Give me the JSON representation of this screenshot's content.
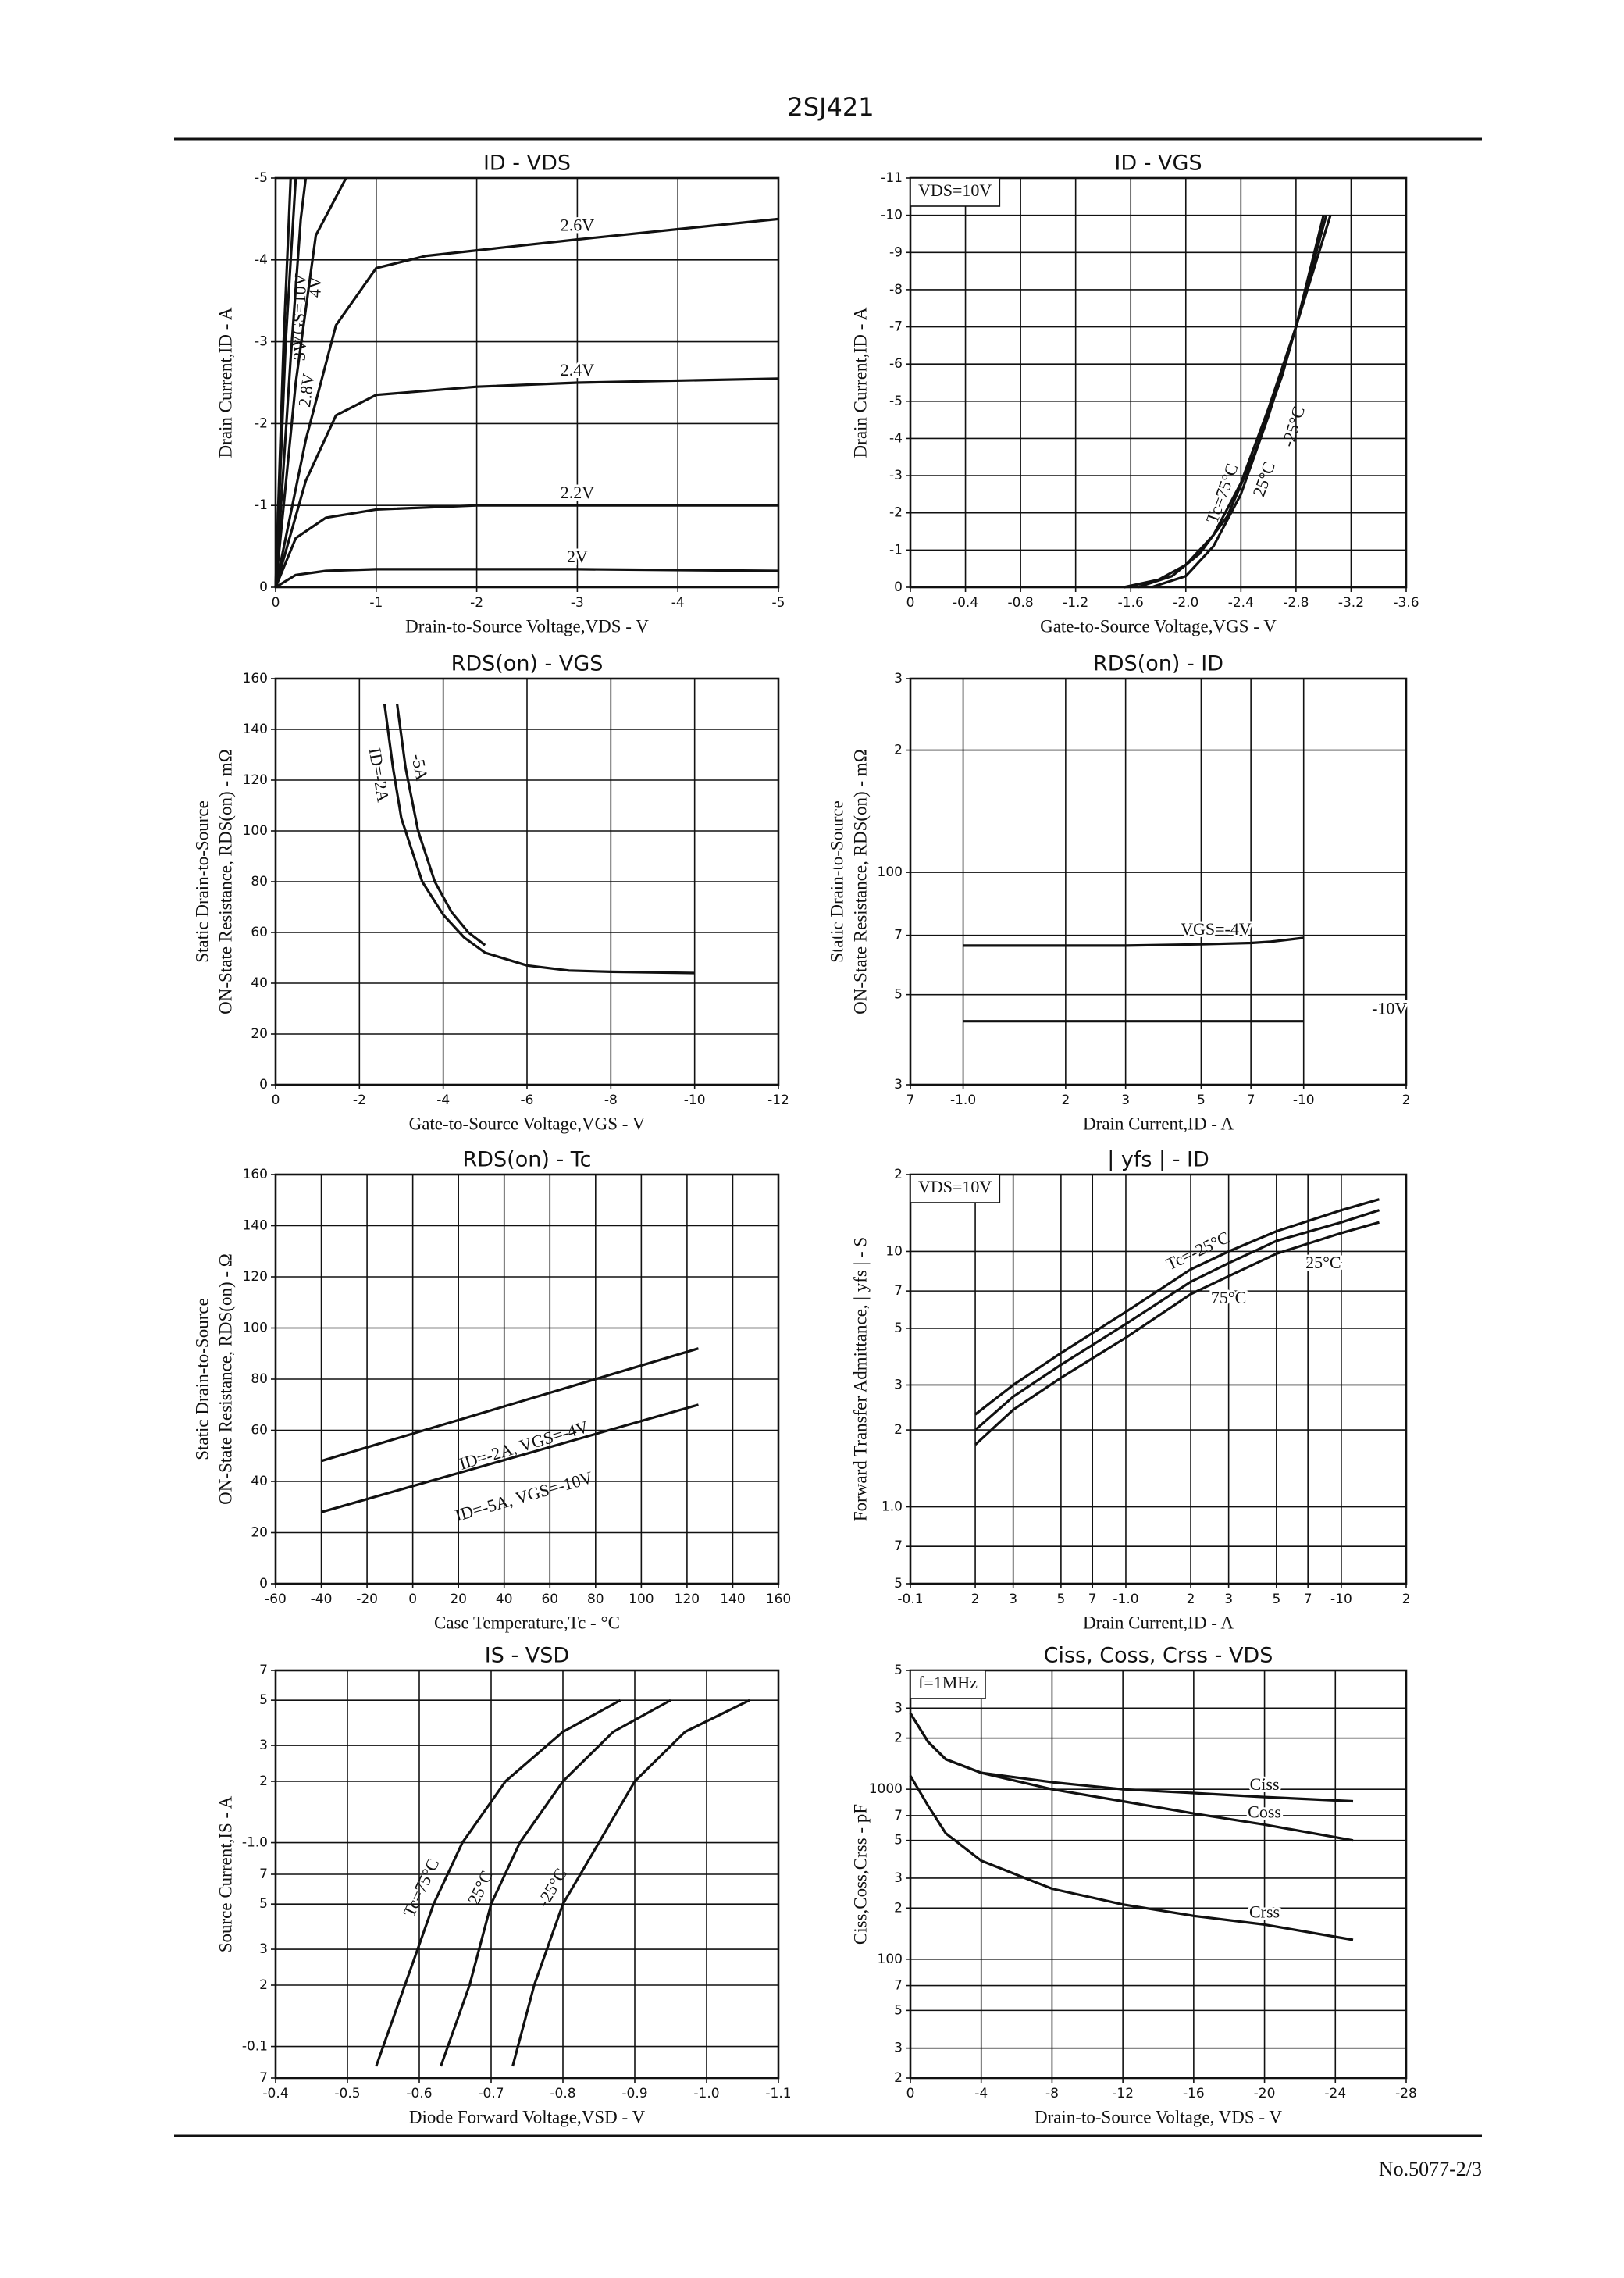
{
  "header": {
    "part": "2SJ421"
  },
  "footer": {
    "page": "No.5077-2/3"
  },
  "chart_data": [
    {
      "type": "line",
      "title": "ID - VDS",
      "xlabel": "Drain-to-Source Voltage,VDS - V",
      "ylabel": [
        "Drain Current,ID - A"
      ],
      "xlim": [
        0,
        -5
      ],
      "ylim": [
        0,
        -5
      ],
      "xticks": [
        0,
        -1,
        -2,
        -3,
        -4,
        -5
      ],
      "yticks": [
        0,
        -1,
        -2,
        -3,
        -4,
        -5
      ],
      "xlog": false,
      "ylog": false,
      "grid": true,
      "series": [
        {
          "name": "2V",
          "color": "#111",
          "x": [
            0,
            -0.2,
            -0.5,
            -1,
            -2,
            -3,
            -5
          ],
          "values": [
            0,
            -0.15,
            -0.2,
            -0.22,
            -0.22,
            -0.22,
            -0.2
          ]
        },
        {
          "name": "2.2V",
          "color": "#111",
          "x": [
            0,
            -0.2,
            -0.5,
            -1,
            -2,
            -3,
            -5
          ],
          "values": [
            0,
            -0.6,
            -0.85,
            -0.95,
            -1,
            -1,
            -1
          ]
        },
        {
          "name": "2.4V",
          "color": "#111",
          "x": [
            0,
            -0.3,
            -0.6,
            -1,
            -2,
            -3,
            -5
          ],
          "values": [
            0,
            -1.3,
            -2.1,
            -2.35,
            -2.45,
            -2.5,
            -2.55
          ]
        },
        {
          "name": "2.6V",
          "color": "#111",
          "x": [
            0,
            -0.3,
            -0.6,
            -1,
            -1.5,
            -3,
            -5
          ],
          "values": [
            0,
            -1.8,
            -3.2,
            -3.9,
            -4.05,
            -4.25,
            -4.5
          ]
        },
        {
          "name": "2.8V",
          "color": "#111",
          "x": [
            0,
            -0.2,
            -0.4,
            -0.7
          ],
          "values": [
            0,
            -2.5,
            -4.3,
            -5
          ]
        },
        {
          "name": "3V",
          "color": "#111",
          "x": [
            0,
            -0.15,
            -0.25,
            -0.3
          ],
          "values": [
            0,
            -2.8,
            -4.5,
            -5
          ]
        },
        {
          "name": "VGS=10V",
          "color": "#111",
          "x": [
            0,
            -0.08,
            -0.15
          ],
          "values": [
            0,
            -3,
            -5
          ]
        },
        {
          "name": "4V",
          "color": "#111",
          "x": [
            0,
            -0.1,
            -0.2
          ],
          "values": [
            0,
            -3,
            -5
          ]
        }
      ]
    },
    {
      "type": "line",
      "title": "ID - VGS",
      "xlabel": "Gate-to-Source Voltage,VGS - V",
      "ylabel": [
        "Drain Current,ID - A"
      ],
      "xlim": [
        0,
        -3.6
      ],
      "ylim": [
        0,
        -11
      ],
      "xticks": [
        0,
        -0.4,
        -0.8,
        -1.2,
        -1.6,
        {
          "value": -2,
          "label": "-2.0"
        },
        -2.4,
        -2.8,
        -3.2,
        -3.6
      ],
      "yticks": [
        0,
        -1,
        -2,
        -3,
        -4,
        -5,
        -6,
        -7,
        -8,
        -9,
        -10,
        -11
      ],
      "xlog": false,
      "ylog": false,
      "grid": true,
      "annotation": "VDS=10V",
      "series": [
        {
          "name": "Tc=75°C",
          "color": "#111",
          "x": [
            -1.55,
            -1.8,
            -2.0,
            -2.2,
            -2.4,
            -2.6,
            -2.8,
            -3.0
          ],
          "values": [
            0,
            -0.2,
            -0.6,
            -1.4,
            -2.8,
            -4.8,
            -7,
            -10
          ]
        },
        {
          "name": "25°C",
          "color": "#111",
          "x": [
            -1.65,
            -1.9,
            -2.1,
            -2.3,
            -2.5,
            -2.7,
            -2.8,
            -3.02
          ],
          "values": [
            0,
            -0.3,
            -0.9,
            -1.9,
            -3.6,
            -5.7,
            -7,
            -10
          ]
        },
        {
          "name": "-25°C",
          "color": "#111",
          "x": [
            -1.75,
            -2.0,
            -2.2,
            -2.4,
            -2.6,
            -2.8,
            -3.05
          ],
          "values": [
            0,
            -0.3,
            -1.1,
            -2.5,
            -4.6,
            -7,
            -10
          ]
        }
      ]
    },
    {
      "type": "line",
      "title": "RDS(on) - VGS",
      "xlabel": "Gate-to-Source Voltage,VGS - V",
      "ylabel": [
        "Static Drain-to-Source",
        "ON-State Resistance, RDS(on) - mΩ"
      ],
      "xlim": [
        0,
        -12
      ],
      "ylim": [
        0,
        160
      ],
      "xticks": [
        0,
        -2,
        -4,
        -6,
        -8,
        -10,
        -12
      ],
      "yticks": [
        0,
        20,
        40,
        60,
        80,
        100,
        120,
        140,
        160
      ],
      "xlog": false,
      "ylog": false,
      "grid": true,
      "series": [
        {
          "name": "ID=-2A",
          "color": "#111",
          "x": [
            -2.6,
            -2.8,
            -3,
            -3.5,
            -4,
            -4.5,
            -5,
            -6,
            -7,
            -8,
            -10
          ],
          "values": [
            150,
            125,
            105,
            80,
            67,
            58,
            52,
            47,
            45,
            44.5,
            44
          ]
        },
        {
          "name": "-5A",
          "color": "#111",
          "x": [
            -2.9,
            -3.1,
            -3.4,
            -3.8,
            -4.2,
            -4.6,
            -5
          ],
          "values": [
            150,
            125,
            100,
            80,
            68,
            60,
            55
          ]
        }
      ]
    },
    {
      "type": "line",
      "title": "RDS(on) - ID",
      "xlabel": "Drain Current,ID - A",
      "ylabel": [
        "Static Drain-to-Source",
        "ON-State Resistance, RDS(on) - mΩ"
      ],
      "xlim": [
        -0.7,
        -20
      ],
      "ylim": [
        30,
        300
      ],
      "xticks": [
        {
          "value": -0.7,
          "label": "7"
        },
        {
          "value": -1,
          "label": "-1.0"
        },
        {
          "value": -2,
          "label": "2"
        },
        {
          "value": -3,
          "label": "3"
        },
        {
          "value": -5,
          "label": "5"
        },
        {
          "value": -7,
          "label": "7"
        },
        -10,
        {
          "value": -20,
          "label": "2"
        }
      ],
      "yticks": [
        {
          "value": 30,
          "label": "3"
        },
        {
          "value": 50,
          "label": "5"
        },
        {
          "value": 70,
          "label": "7"
        },
        100,
        {
          "value": 200,
          "label": "2"
        },
        {
          "value": 300,
          "label": "3"
        }
      ],
      "xlog": true,
      "ylog": true,
      "grid": true,
      "series": [
        {
          "name": "VGS=-4V",
          "color": "#111",
          "x": [
            -1,
            -3,
            -5,
            -7,
            -8,
            -10
          ],
          "values": [
            66,
            66,
            66.5,
            67,
            67.5,
            69
          ]
        },
        {
          "name": "-10V",
          "color": "#111",
          "x": [
            -1,
            -10
          ],
          "values": [
            43,
            43
          ]
        }
      ]
    },
    {
      "type": "line",
      "title": "RDS(on) - Tc",
      "xlabel": "Case Temperature,Tc - °C",
      "ylabel": [
        "Static Drain-to-Source",
        "ON-State Resistance, RDS(on) - Ω"
      ],
      "xlim": [
        -60,
        160
      ],
      "ylim": [
        0,
        160
      ],
      "xticks": [
        -60,
        -40,
        -20,
        0,
        20,
        40,
        60,
        80,
        100,
        120,
        140,
        160
      ],
      "yticks": [
        0,
        20,
        40,
        60,
        80,
        100,
        120,
        140,
        160
      ],
      "xlog": false,
      "ylog": false,
      "grid": true,
      "series": [
        {
          "name": "ID=-2A, VGS=-4V",
          "color": "#111",
          "x": [
            -40,
            125
          ],
          "values": [
            48,
            92
          ]
        },
        {
          "name": "ID=-5A, VGS=-10V",
          "color": "#111",
          "x": [
            -40,
            125
          ],
          "values": [
            28,
            70
          ]
        }
      ]
    },
    {
      "type": "line",
      "title": "| yfs | - ID",
      "xlabel": "Drain Current,ID - A",
      "ylabel": [
        "Forward Transfer Admittance, | yfs | - S"
      ],
      "xlim": [
        -0.1,
        -20
      ],
      "ylim": [
        0.5,
        20
      ],
      "xticks": [
        -0.1,
        {
          "value": -0.2,
          "label": "2"
        },
        {
          "value": -0.3,
          "label": "3"
        },
        {
          "value": -0.5,
          "label": "5"
        },
        {
          "value": -0.7,
          "label": "7"
        },
        {
          "value": -1,
          "label": "-1.0"
        },
        {
          "value": -2,
          "label": "2"
        },
        {
          "value": -3,
          "label": "3"
        },
        {
          "value": -5,
          "label": "5"
        },
        {
          "value": -7,
          "label": "7"
        },
        -10,
        {
          "value": -20,
          "label": "2"
        }
      ],
      "yticks": [
        {
          "value": 0.5,
          "label": "5"
        },
        {
          "value": 0.7,
          "label": "7"
        },
        {
          "value": 1,
          "label": "1.0"
        },
        2,
        3,
        5,
        7,
        10,
        {
          "value": 20,
          "label": "2"
        }
      ],
      "xlog": true,
      "ylog": true,
      "grid": true,
      "annotation": "VDS=10V",
      "series": [
        {
          "name": "Tc=-25°C",
          "color": "#111",
          "x": [
            -0.2,
            -0.3,
            -0.5,
            -1,
            -2,
            -3,
            -5,
            -10,
            -15
          ],
          "values": [
            2.3,
            3,
            4,
            5.8,
            8.5,
            10,
            12,
            14.5,
            16
          ]
        },
        {
          "name": "25°C",
          "color": "#111",
          "x": [
            -0.2,
            -0.3,
            -0.5,
            -1,
            -2,
            -3,
            -5,
            -10,
            -15
          ],
          "values": [
            2,
            2.7,
            3.6,
            5.2,
            7.6,
            9,
            11,
            13,
            14.5
          ]
        },
        {
          "name": "75°C",
          "color": "#111",
          "x": [
            -0.2,
            -0.3,
            -0.5,
            -1,
            -2,
            -3,
            -5,
            -10,
            -15
          ],
          "values": [
            1.75,
            2.4,
            3.2,
            4.6,
            6.8,
            8,
            9.8,
            11.8,
            13
          ]
        }
      ]
    },
    {
      "type": "line",
      "title": "IS - VSD",
      "xlabel": "Diode Forward Voltage,VSD - V",
      "ylabel": [
        "Source Current,IS - A"
      ],
      "xlim": [
        -0.4,
        -1.1
      ],
      "ylim": [
        -0.07,
        -7
      ],
      "xticks": [
        -0.4,
        -0.5,
        -0.6,
        -0.7,
        -0.8,
        -0.9,
        {
          "value": -1,
          "label": "-1.0"
        },
        -1.1
      ],
      "yticks": [
        {
          "value": -0.07,
          "label": "7"
        },
        -0.1,
        {
          "value": -0.2,
          "label": "2"
        },
        {
          "value": -0.3,
          "label": "3"
        },
        {
          "value": -0.5,
          "label": "5"
        },
        {
          "value": -0.7,
          "label": "7"
        },
        {
          "value": -1,
          "label": "-1.0"
        },
        {
          "value": -2,
          "label": "2"
        },
        {
          "value": -3,
          "label": "3"
        },
        {
          "value": -5,
          "label": "5"
        },
        {
          "value": -7,
          "label": "7"
        }
      ],
      "xlog": false,
      "ylog": true,
      "grid": true,
      "series": [
        {
          "name": "Tc=75°C",
          "color": "#111",
          "x": [
            -0.54,
            -0.58,
            -0.62,
            -0.66,
            -0.72,
            -0.8,
            -0.88
          ],
          "values": [
            -0.08,
            -0.2,
            -0.5,
            -1,
            -2,
            -3.5,
            -5
          ]
        },
        {
          "name": "25°C",
          "color": "#111",
          "x": [
            -0.63,
            -0.67,
            -0.7,
            -0.74,
            -0.8,
            -0.87,
            -0.95
          ],
          "values": [
            -0.08,
            -0.2,
            -0.5,
            -1,
            -2,
            -3.5,
            -5
          ]
        },
        {
          "name": "-25°C",
          "color": "#111",
          "x": [
            -0.73,
            -0.76,
            -0.8,
            -0.85,
            -0.9,
            -0.97,
            -1.06
          ],
          "values": [
            -0.08,
            -0.2,
            -0.5,
            -1,
            -2,
            -3.5,
            -5
          ]
        }
      ]
    },
    {
      "type": "line",
      "title": "Ciss, Coss, Crss - VDS",
      "xlabel": "Drain-to-Source Voltage, VDS - V",
      "ylabel": [
        "Ciss,Coss,Crss - pF"
      ],
      "xlim": [
        0,
        -28
      ],
      "ylim": [
        20,
        5000
      ],
      "xticks": [
        0,
        -4,
        -8,
        -12,
        -16,
        -20,
        -24,
        -28
      ],
      "yticks": [
        {
          "value": 20,
          "label": "2"
        },
        {
          "value": 30,
          "label": "3"
        },
        {
          "value": 50,
          "label": "5"
        },
        {
          "value": 70,
          "label": "7"
        },
        100,
        {
          "value": 200,
          "label": "2"
        },
        {
          "value": 300,
          "label": "3"
        },
        {
          "value": 500,
          "label": "5"
        },
        {
          "value": 700,
          "label": "7"
        },
        1000,
        {
          "value": 2000,
          "label": "2"
        },
        {
          "value": 3000,
          "label": "3"
        },
        {
          "value": 5000,
          "label": "5"
        }
      ],
      "xlog": false,
      "ylog": true,
      "grid": true,
      "annotation": "f=1MHz",
      "series": [
        {
          "name": "Ciss",
          "color": "#111",
          "x": [
            0,
            -1,
            -2,
            -4,
            -8,
            -12,
            -16,
            -20,
            -25
          ],
          "values": [
            2800,
            1900,
            1500,
            1250,
            1100,
            1000,
            950,
            900,
            850
          ]
        },
        {
          "name": "Coss",
          "color": "#111",
          "x": [
            0,
            -1,
            -2,
            -4,
            -8,
            -12,
            -16,
            -20,
            -25
          ],
          "values": [
            2800,
            1900,
            1500,
            1250,
            1000,
            850,
            720,
            620,
            500
          ]
        },
        {
          "name": "Crss",
          "color": "#111",
          "x": [
            0,
            -1,
            -2,
            -4,
            -8,
            -12,
            -16,
            -20,
            -25
          ],
          "values": [
            1200,
            800,
            550,
            380,
            260,
            210,
            180,
            160,
            130
          ]
        }
      ]
    }
  ]
}
